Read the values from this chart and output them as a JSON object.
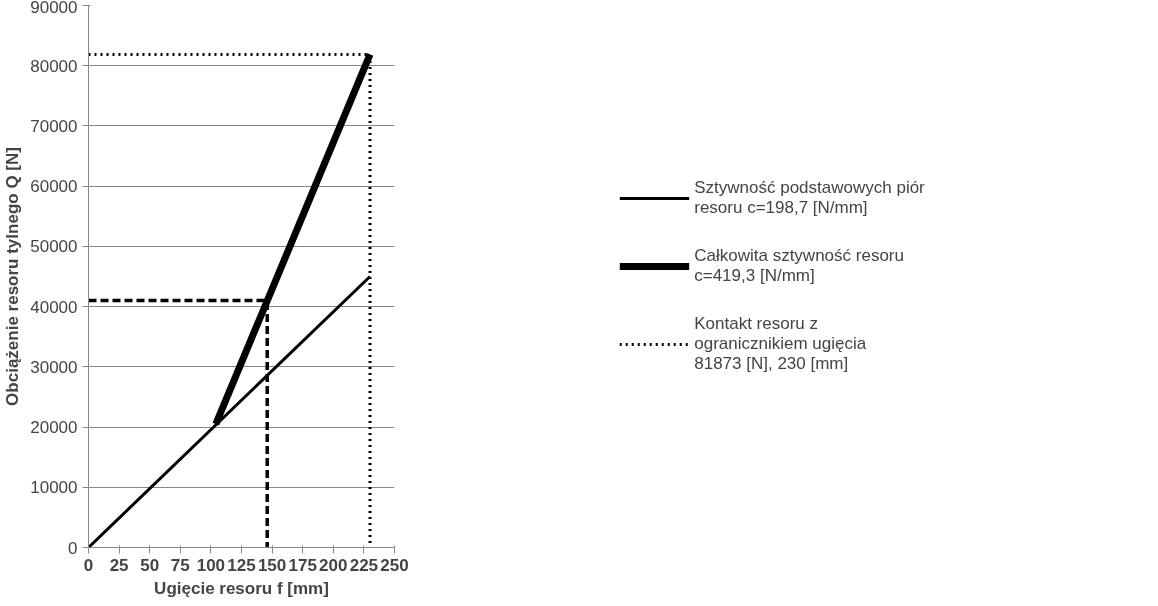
{
  "chart_data": {
    "type": "line",
    "xlabel": "Ugięcie resoru f [mm]",
    "ylabel": "Obciążenie resoru tylnego Q [N]",
    "xlim": [
      0,
      250
    ],
    "xticks": [
      0,
      25,
      50,
      75,
      100,
      125,
      150,
      175,
      200,
      225,
      250
    ],
    "ylim": [
      0,
      90000
    ],
    "yticks": [
      0,
      10000,
      20000,
      30000,
      40000,
      50000,
      60000,
      70000,
      80000,
      90000
    ],
    "grid": "y",
    "legend": "right",
    "marker": "none",
    "series": [
      {
        "name": "Sztywność podstawowych piór resoru c=198,7 [N/mm]",
        "color": "#000000",
        "x": [
          0,
          230
        ],
        "values": [
          0,
          45000
        ],
        "line_style": "solid"
      },
      {
        "name": "Całkowita sztywność resoru c=419,3 [N/mm]",
        "color": "#000000",
        "x": [
          104,
          230
        ],
        "values": [
          20500,
          81873
        ],
        "line_style": "solid"
      },
      {
        "name": "Kontakt resoru z ogranicznikiem ugięcia 81873 [N], 230 [mm]",
        "color": "#000000",
        "x": [
          0,
          230,
          230
        ],
        "values": [
          81873,
          81873,
          0
        ],
        "line_style": "dotted"
      },
      {
        "color": "#000000",
        "x": [
          0,
          146,
          146
        ],
        "values": [
          41000,
          41000,
          0
        ],
        "line_style": "dashed"
      }
    ]
  }
}
